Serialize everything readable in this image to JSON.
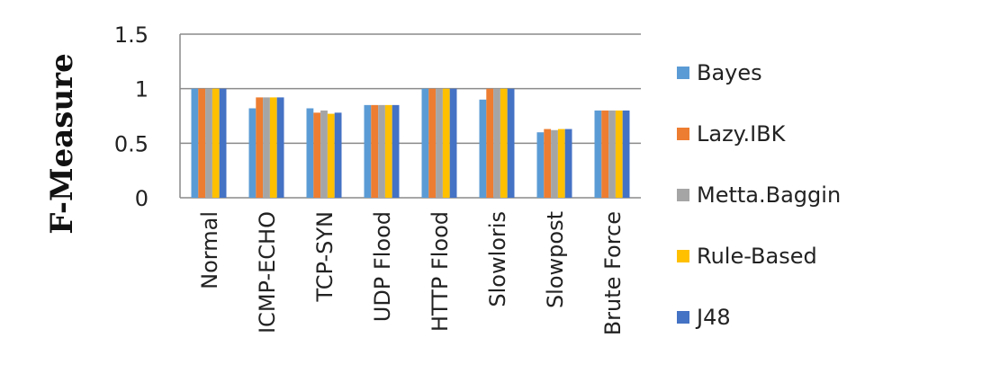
{
  "chart_data": {
    "type": "bar",
    "title": "",
    "xlabel": "",
    "ylabel": "F-Measure",
    "ylim": [
      0,
      1.5
    ],
    "yticks": [
      0,
      0.5,
      1,
      1.5
    ],
    "grid": true,
    "legend_position": "right",
    "categories": [
      "Normal",
      "ICMP-ECHO",
      "TCP-SYN",
      "UDP Flood",
      "HTTP Flood",
      "Slowloris",
      "Slowpost",
      "Brute Force"
    ],
    "series": [
      {
        "name": "Bayes",
        "color": "#5b9bd5",
        "values": [
          1.0,
          0.82,
          0.82,
          0.85,
          1.0,
          0.9,
          0.6,
          0.8
        ]
      },
      {
        "name": "Lazy.IBK",
        "color": "#ed7d31",
        "values": [
          1.0,
          0.92,
          0.78,
          0.85,
          1.0,
          1.0,
          0.63,
          0.8
        ]
      },
      {
        "name": "Metta.Baggin",
        "color": "#a5a5a5",
        "values": [
          1.0,
          0.92,
          0.8,
          0.85,
          1.0,
          1.0,
          0.62,
          0.8
        ]
      },
      {
        "name": "Rule-Based",
        "color": "#ffc000",
        "values": [
          1.0,
          0.92,
          0.77,
          0.85,
          1.0,
          1.0,
          0.63,
          0.8
        ]
      },
      {
        "name": "J48",
        "color": "#4472c4",
        "values": [
          1.0,
          0.92,
          0.78,
          0.85,
          1.0,
          1.0,
          0.63,
          0.8
        ]
      }
    ]
  }
}
